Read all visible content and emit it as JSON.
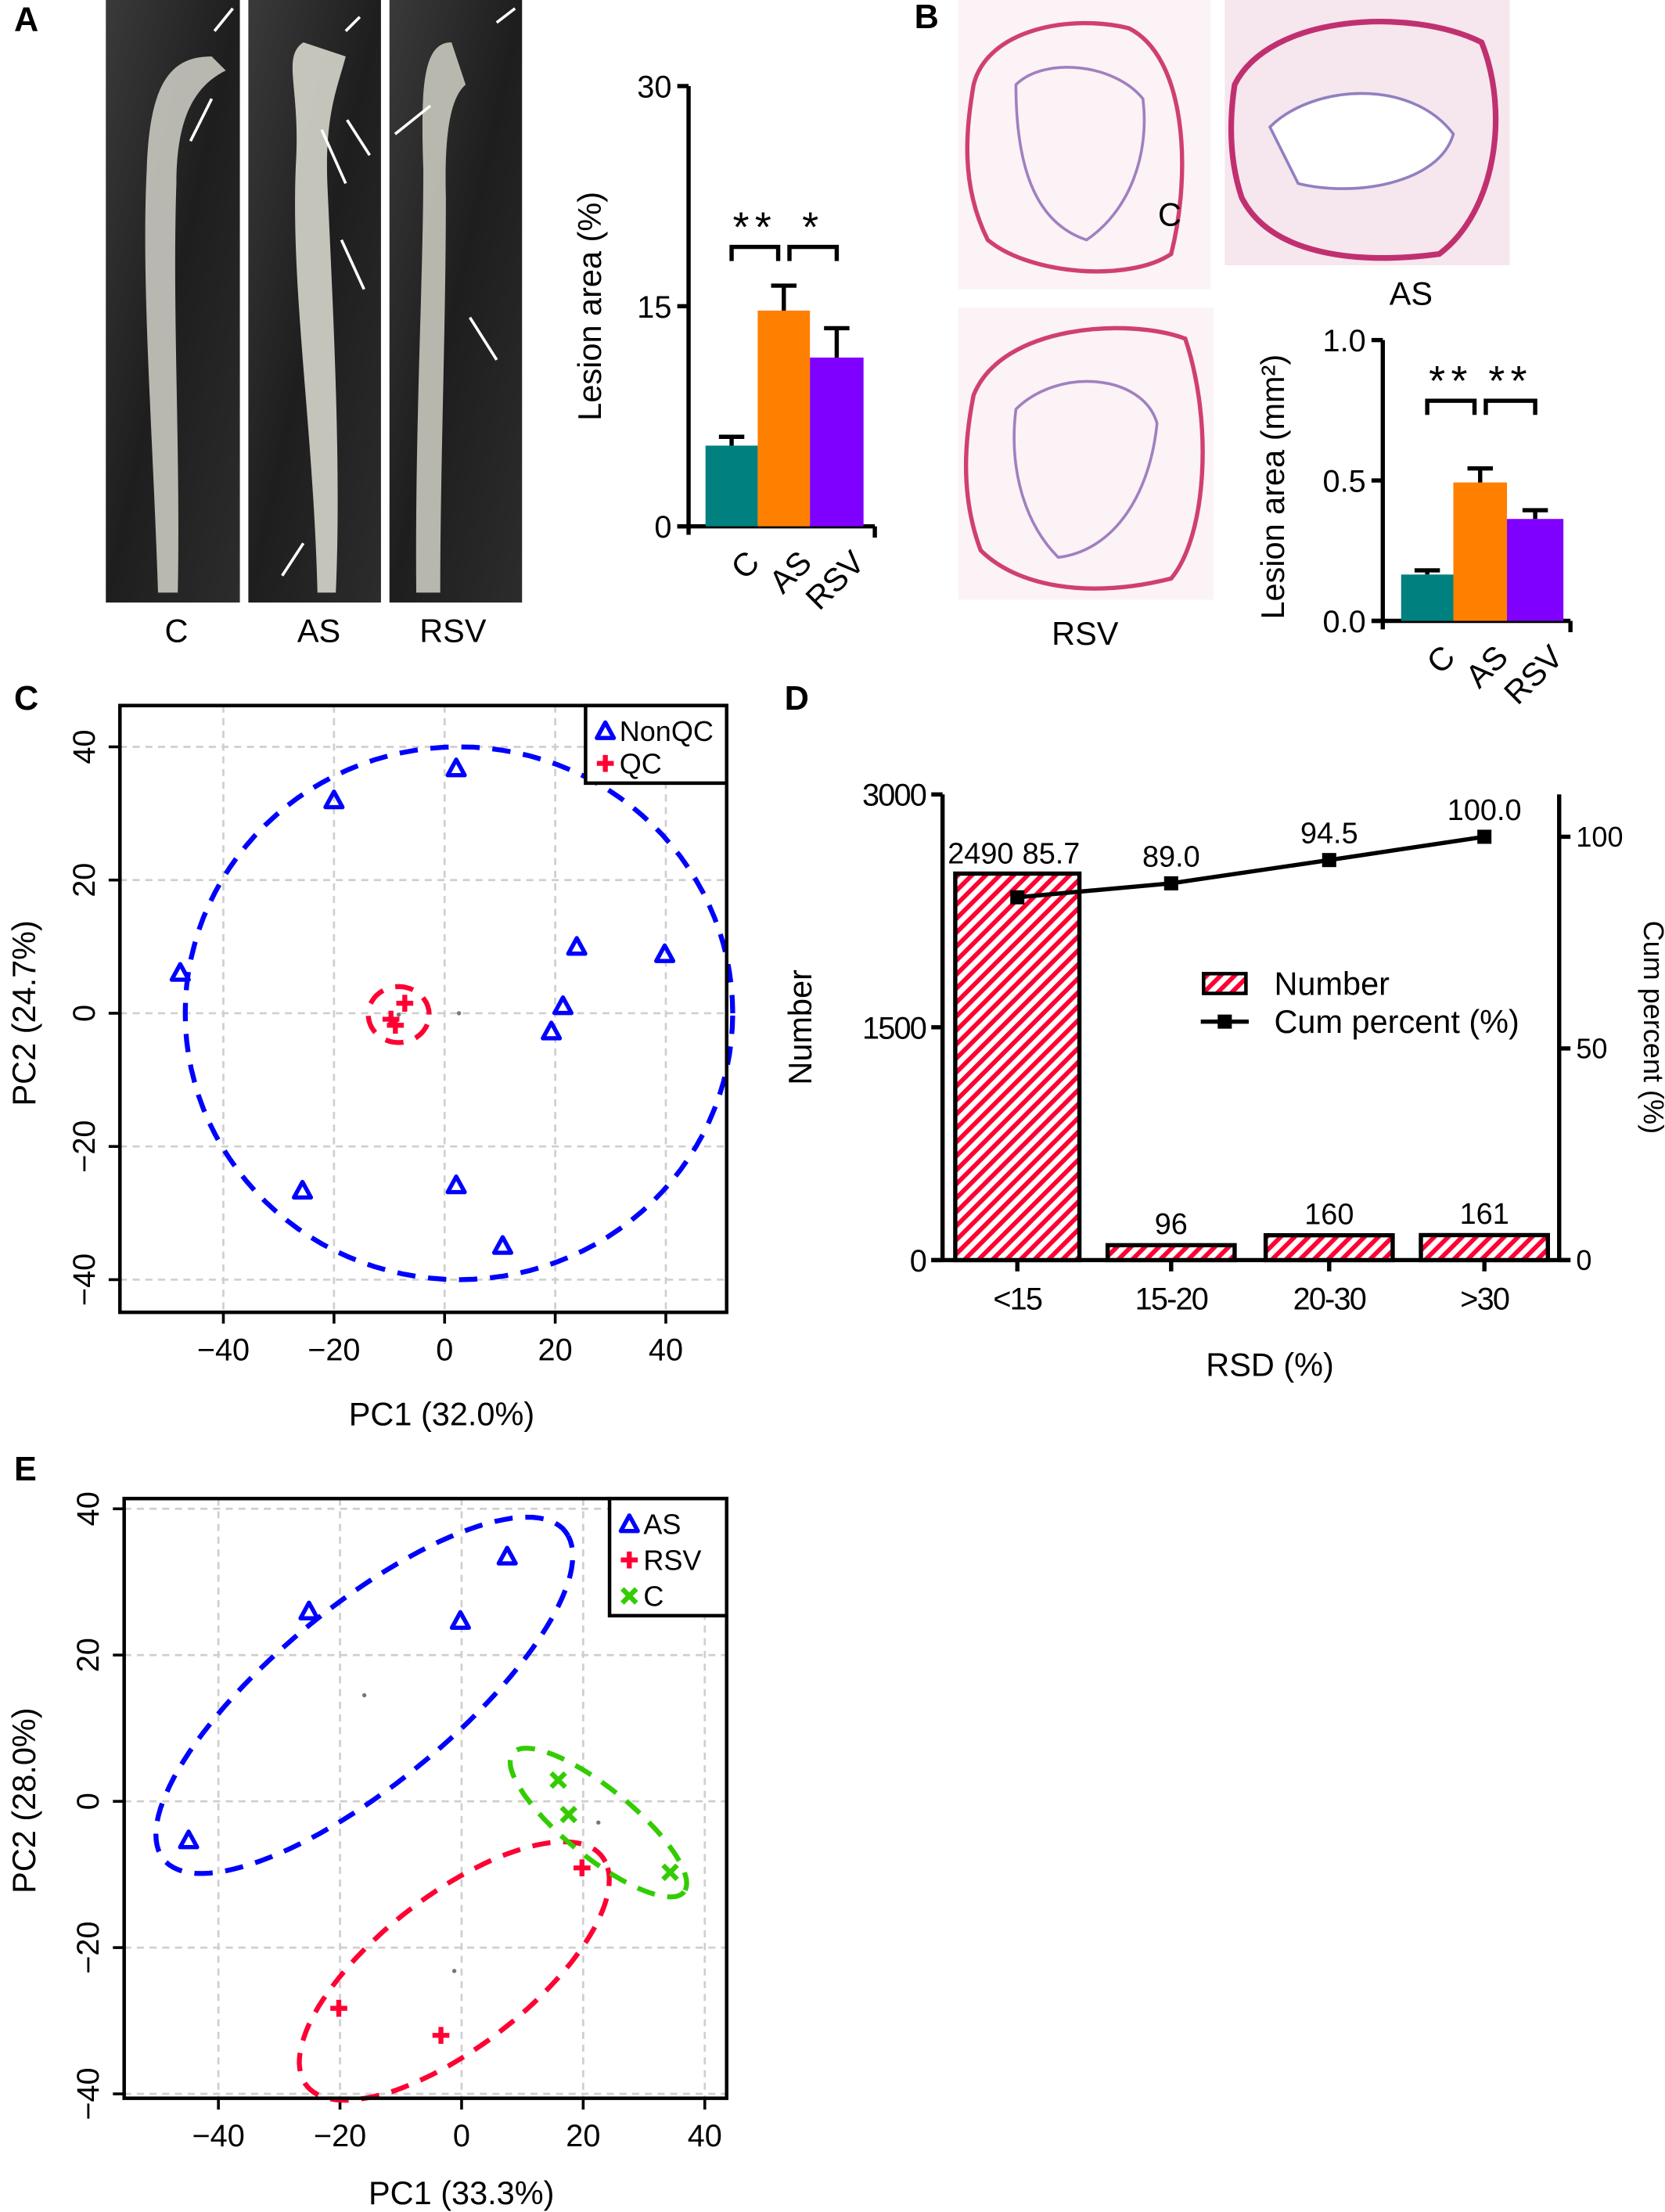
{
  "panel_labels": {
    "a": "A",
    "b": "B",
    "c": "C",
    "d": "D",
    "e": "E"
  },
  "panel_a": {
    "photo_labels": [
      "C",
      "AS",
      "RSV"
    ]
  },
  "panel_b": {
    "image_labels": [
      "C",
      "AS",
      "RSV"
    ]
  },
  "chart_data": [
    {
      "panel": "A",
      "type": "bar",
      "categories": [
        "C",
        "AS",
        "RSV"
      ],
      "values": [
        5.5,
        14.7,
        11.5
      ],
      "error_upper": [
        6.1,
        16.4,
        13.5
      ],
      "colors": [
        "#00807f",
        "#ff7f00",
        "#7f00ff"
      ],
      "ylabel": "Lesion area (%)",
      "ylim": [
        0,
        30
      ],
      "yticks": [
        0,
        15,
        30
      ],
      "ytick_labels": [
        "0",
        "15",
        "30"
      ],
      "significance": [
        {
          "from": "C",
          "to": "AS",
          "label": "**"
        },
        {
          "from": "AS",
          "to": "RSV",
          "label": "*"
        }
      ]
    },
    {
      "panel": "B",
      "type": "bar",
      "categories": [
        "C",
        "AS",
        "RSV"
      ],
      "values": [
        0.165,
        0.493,
        0.363
      ],
      "error_upper": [
        0.18,
        0.543,
        0.394
      ],
      "colors": [
        "#00807f",
        "#ff7f00",
        "#7f00ff"
      ],
      "ylabel": "Lesion area (mm²)",
      "ylim": [
        0,
        1.0
      ],
      "yticks": [
        0,
        0.5,
        1.0
      ],
      "ytick_labels": [
        "0.0",
        "0.5",
        "1.0"
      ],
      "significance": [
        {
          "from": "C",
          "to": "AS",
          "label": "**"
        },
        {
          "from": "AS",
          "to": "RSV",
          "label": "**"
        }
      ]
    },
    {
      "panel": "C",
      "type": "scatter",
      "xlabel": "PC1 (32.0%)",
      "ylabel": "PC2 (24.7%)",
      "xlim": [
        -58.7,
        51
      ],
      "ylim": [
        -44.9,
        46.2
      ],
      "xticks": [
        -40,
        -20,
        0,
        20,
        40
      ],
      "xtick_labels": [
        "−40",
        "−20",
        "0",
        "20",
        "40"
      ],
      "yticks": [
        -40,
        -20,
        0,
        20,
        40
      ],
      "ytick_labels": [
        "−40",
        "−20",
        "0",
        "20",
        "40"
      ],
      "grid": true,
      "legend": "top-right",
      "series": [
        {
          "name": "NonQC",
          "marker": "triangle",
          "color": "#0000ff",
          "points": [
            [
              2.1,
              36.8
            ],
            [
              -20,
              32
            ],
            [
              -47.8,
              6.1
            ],
            [
              23.9,
              10
            ],
            [
              39.8,
              8.9
            ],
            [
              21.4,
              1.1
            ],
            [
              19.3,
              -2.7
            ],
            [
              -25.7,
              -26.6
            ],
            [
              2.1,
              -25.8
            ],
            [
              10.5,
              -34.9
            ]
          ]
        },
        {
          "name": "QC",
          "marker": "plus",
          "color": "#ff0033",
          "points": [
            [
              -7.2,
              1.5
            ],
            [
              -9.7,
              -0.9
            ],
            [
              -8.9,
              -1.8
            ]
          ]
        }
      ],
      "ellipses": [
        {
          "series": "NonQC",
          "center": [
            2.6,
            0
          ],
          "semi_axes": [
            49.5,
            40
          ],
          "angle": 0,
          "color": "#0000ff"
        },
        {
          "series": "QC",
          "center": [
            -8.3,
            -0.2
          ],
          "semi_axes": [
            5.5,
            4.2
          ],
          "angle": 0,
          "color": "#ff0033"
        }
      ]
    },
    {
      "panel": "D",
      "type": "bar",
      "categories": [
        "<15",
        "15-20",
        "20-30",
        ">30"
      ],
      "values": [
        2490,
        96,
        160,
        161
      ],
      "value_labels": [
        "2490",
        "96",
        "160",
        "161"
      ],
      "line_series": {
        "name": "Cum percent (%)",
        "values": [
          85.7,
          89.0,
          94.5,
          100.0
        ],
        "labels": [
          "85.7",
          "89.0",
          "94.5",
          "100.0"
        ]
      },
      "bar_series_name": "Number",
      "bar_fill": "hatched",
      "bar_color": "#ff0033",
      "xlabel": "RSD (%)",
      "ylabel": "Number",
      "y2label": "Cum percent (%)",
      "ylim": [
        0,
        3000
      ],
      "yticks": [
        0,
        1500,
        3000
      ],
      "ytick_labels": [
        "0",
        "1500",
        "3000"
      ],
      "y2lim": [
        0,
        110
      ],
      "y2ticks": [
        0,
        50,
        100
      ],
      "y2tick_labels": [
        "0",
        "50",
        "100"
      ],
      "legend": "center-right"
    },
    {
      "panel": "E",
      "type": "scatter",
      "xlabel": "PC1 (33.3%)",
      "ylabel": "PC2 (28.0%)",
      "xlim": [
        -55.5,
        43.6
      ],
      "ylim": [
        -40.6,
        41.4
      ],
      "xticks": [
        -40,
        -20,
        0,
        20,
        40
      ],
      "xtick_labels": [
        "−40",
        "−20",
        "0",
        "20",
        "40"
      ],
      "yticks": [
        -40,
        -20,
        0,
        20,
        40
      ],
      "ytick_labels": [
        "−40",
        "−20",
        "0",
        "20",
        "40"
      ],
      "grid": true,
      "legend": "top-right",
      "series": [
        {
          "name": "AS",
          "marker": "triangle",
          "color": "#0000ff",
          "points": [
            [
              7.5,
              33.5
            ],
            [
              -25.1,
              26
            ],
            [
              -0.2,
              24.7
            ],
            [
              -44.9,
              -5.3
            ]
          ]
        },
        {
          "name": "RSV",
          "marker": "plus",
          "color": "#ff0033",
          "points": [
            [
              19.8,
              -9.1
            ],
            [
              -20.2,
              -28.3
            ],
            [
              -3.4,
              -32
            ]
          ]
        },
        {
          "name": "C",
          "marker": "cross",
          "color": "#33cc00",
          "points": [
            [
              15.9,
              2.9
            ],
            [
              17.6,
              -1.8
            ],
            [
              34.3,
              -9.7
            ]
          ]
        }
      ],
      "ellipses": [
        {
          "series": "AS",
          "center": [
            -16,
            14.5
          ],
          "semi_axes": [
            40,
            13
          ],
          "angle": 33,
          "color": "#0000ff"
        },
        {
          "series": "RSV",
          "center": [
            -1.2,
            -23.2
          ],
          "semi_axes": [
            29,
            11
          ],
          "angle": 31,
          "color": "#ff0033"
        },
        {
          "series": "C",
          "center": [
            22.5,
            -2.9
          ],
          "semi_axes": [
            17,
            5
          ],
          "angle": -33,
          "color": "#33cc00"
        }
      ]
    }
  ]
}
